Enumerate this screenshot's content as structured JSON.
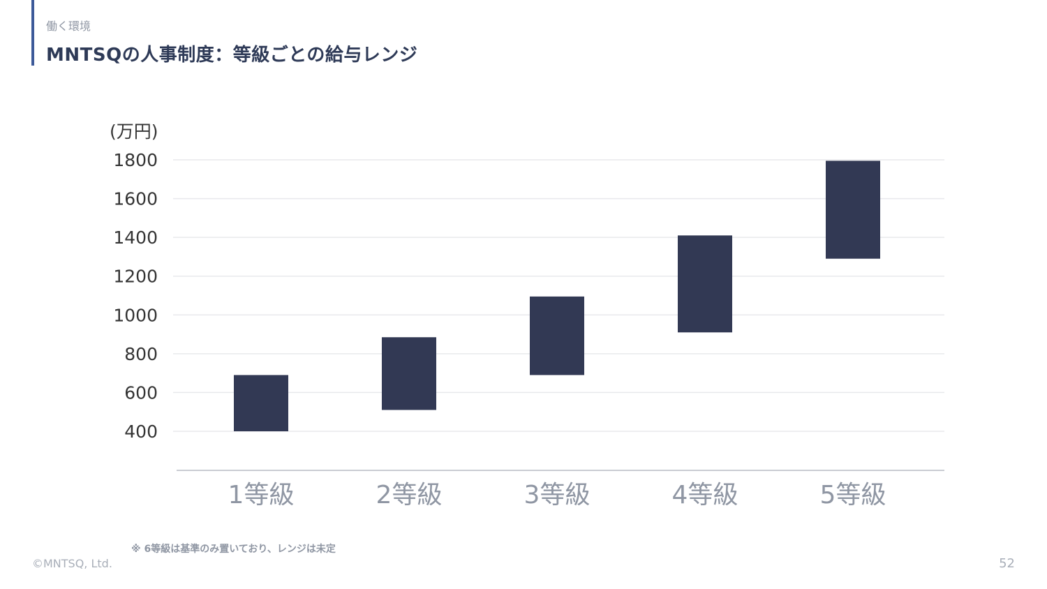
{
  "header": {
    "section": "働く環境",
    "title": "MNTSQの人事制度：等級ごとの給与レンジ"
  },
  "chart_data": {
    "type": "bar",
    "subtype": "floating-range",
    "unit_label": "(万円)",
    "categories": [
      "1等級",
      "2等級",
      "3等級",
      "4等級",
      "5等級"
    ],
    "ranges": [
      [
        400,
        690
      ],
      [
        510,
        885
      ],
      [
        690,
        1095
      ],
      [
        910,
        1410
      ],
      [
        1290,
        1795
      ]
    ],
    "yticks": [
      400,
      600,
      800,
      1000,
      1200,
      1400,
      1600,
      1800
    ],
    "grid": true,
    "legend": "none",
    "bar_color": "#323954"
  },
  "footnote": "※ 6等級は基準のみ置いており、レンジは未定",
  "footer": {
    "copyright": "©MNTSQ, Ltd.",
    "page_number": "52"
  }
}
